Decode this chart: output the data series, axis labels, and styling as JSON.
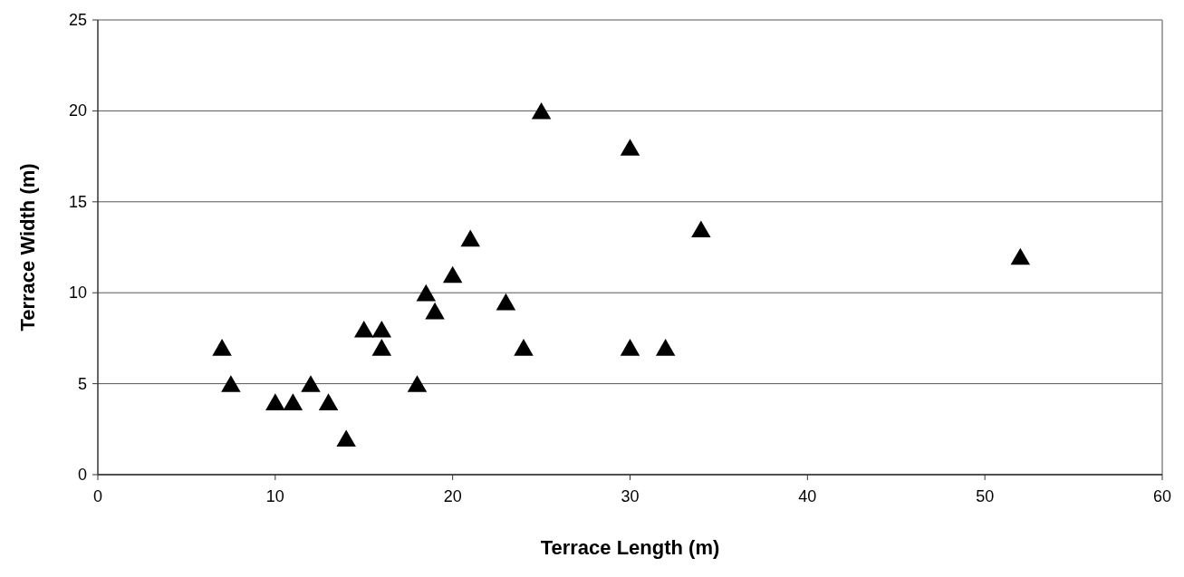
{
  "chart_data": {
    "type": "scatter",
    "xlabel": "Terrace Length (m)",
    "ylabel": "Terrace Width (m)",
    "x": [
      7,
      7.5,
      10,
      11,
      12,
      13,
      14,
      15,
      16,
      16,
      18,
      18.5,
      19,
      20,
      21,
      23,
      24,
      25,
      30,
      30,
      32,
      34,
      52
    ],
    "series": [
      {
        "color": "#000000",
        "values": [
          7,
          5,
          4,
          4,
          5,
          4,
          2,
          8,
          8,
          7,
          5,
          10,
          9,
          11,
          13,
          9.5,
          7,
          20,
          18,
          7,
          7,
          13.5,
          12
        ]
      }
    ],
    "xlim": [
      0,
      60
    ],
    "xticks": [
      0,
      10,
      20,
      30,
      40,
      50,
      60
    ],
    "ylim": [
      0,
      25
    ],
    "yticks": [
      0,
      5,
      10,
      15,
      20,
      25
    ],
    "grid": "y",
    "marker": "triangle"
  }
}
